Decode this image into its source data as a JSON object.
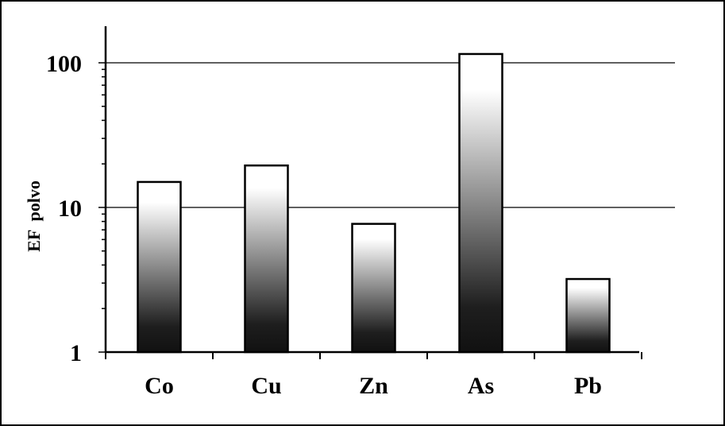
{
  "chart_data": {
    "type": "bar",
    "ylabel": "EF  polvo",
    "yscale": "log",
    "ylim": [
      1,
      150
    ],
    "yticks": [
      1,
      10,
      100
    ],
    "ytick_labels": [
      "1",
      "10",
      "100"
    ],
    "grid_y": true,
    "categories": [
      "Co",
      "Cu",
      "Zn",
      "As",
      "Pb"
    ],
    "values": [
      15,
      19.5,
      7.7,
      115,
      3.2
    ],
    "bar_fill": "vertical gradient, white at top to black at bottom",
    "colors": {
      "bar_top": "#ffffff",
      "bar_bottom": "#111111",
      "axis": "#000000",
      "grid": "#000000"
    }
  }
}
